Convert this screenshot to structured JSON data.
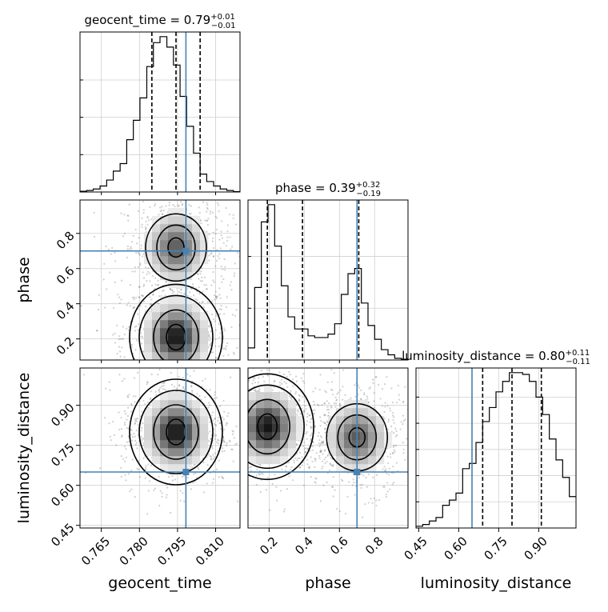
{
  "chart_data": {
    "type": "corner",
    "parameters": [
      "geocent_time",
      "phase",
      "luminosity_distance"
    ],
    "truth": {
      "geocent_time": 0.7983,
      "phase": 0.7,
      "luminosity_distance": 0.65
    },
    "truth_color": "#4682b4",
    "panel_titles": {
      "geocent_time": {
        "prefix": "geocent_time = 0.79",
        "plus": "+0.01",
        "minus": "−0.01"
      },
      "phase": {
        "prefix": "phase = 0.39",
        "plus": "+0.32",
        "minus": "−0.19"
      },
      "luminosity_distance": {
        "prefix": "luminosity_distance = 0.80",
        "plus": "+0.11",
        "minus": "−0.11"
      }
    },
    "axes": {
      "geocent_time": {
        "range": [
          0.7566,
          0.8196
        ],
        "ticks": [
          0.765,
          0.78,
          0.795,
          0.81
        ],
        "tick_labels": [
          "0.765",
          "0.780",
          "0.795",
          "0.810"
        ]
      },
      "phase": {
        "range": [
          0.08,
          0.99
        ],
        "ticks": [
          0.2,
          0.4,
          0.6,
          0.8
        ],
        "tick_labels": [
          "0.2",
          "0.4",
          "0.6",
          "0.8"
        ]
      },
      "luminosity_distance": {
        "range": [
          0.44,
          1.04
        ],
        "ticks": [
          0.45,
          0.6,
          0.75,
          0.9
        ],
        "tick_labels": [
          "0.45",
          "0.60",
          "0.75",
          "0.90"
        ]
      }
    },
    "marginals": {
      "geocent_time": {
        "bin_edges": [
          0.7566,
          0.7592,
          0.7618,
          0.7645,
          0.7671,
          0.7697,
          0.7724,
          0.775,
          0.7776,
          0.7802,
          0.7829,
          0.7855,
          0.7881,
          0.7908,
          0.7934,
          0.796,
          0.7986,
          0.8013,
          0.8039,
          0.8065,
          0.8092,
          0.8118,
          0.8144,
          0.817,
          0.8196
        ],
        "counts": [
          0.5,
          1,
          2,
          4,
          8,
          14,
          19,
          35,
          48,
          63,
          84,
          100,
          104,
          97,
          85,
          64,
          44,
          26,
          12,
          7,
          4,
          2,
          1,
          0.3
        ],
        "quantiles": [
          0.7849,
          0.7944,
          0.8039
        ],
        "yticks": [
          25,
          50,
          75
        ]
      },
      "phase": {
        "bin_edges": [
          0.08,
          0.1179,
          0.1558,
          0.1938,
          0.2317,
          0.2696,
          0.3075,
          0.3454,
          0.3833,
          0.4213,
          0.4592,
          0.4971,
          0.535,
          0.5729,
          0.6108,
          0.6488,
          0.6867,
          0.7246,
          0.7625,
          0.8004,
          0.8383,
          0.8763,
          0.9142,
          0.9521,
          0.99
        ],
        "counts": [
          7,
          42,
          80,
          90,
          66,
          43,
          25,
          18,
          18,
          14,
          13,
          13,
          15,
          21,
          38,
          50,
          53,
          33,
          20,
          12,
          6,
          3,
          1,
          0.5
        ],
        "quantiles": [
          0.19,
          0.39,
          0.71
        ],
        "yticks": [
          30,
          60
        ]
      },
      "luminosity_distance": {
        "bin_edges": [
          0.44,
          0.465,
          0.49,
          0.515,
          0.54,
          0.565,
          0.59,
          0.615,
          0.64,
          0.665,
          0.69,
          0.715,
          0.74,
          0.765,
          0.79,
          0.815,
          0.84,
          0.865,
          0.89,
          0.915,
          0.94,
          0.965,
          0.99,
          1.015,
          1.04
        ],
        "counts": [
          1,
          2,
          4,
          6,
          13,
          16,
          20,
          34,
          37,
          49,
          61,
          69,
          78,
          84,
          89,
          89,
          88,
          84,
          75,
          65,
          51,
          39,
          29,
          18
        ],
        "quantiles": [
          0.69,
          0.8,
          0.91
        ],
        "yticks": [
          15,
          30,
          45,
          60,
          75
        ]
      }
    },
    "joint_modes": [
      {
        "x": "geocent_time",
        "y": "phase",
        "peaks": [
          [
            0.7944,
            0.21,
            1.0
          ],
          [
            0.7944,
            0.72,
            0.7
          ]
        ]
      },
      {
        "x": "geocent_time",
        "y": "luminosity_distance",
        "peaks": [
          [
            0.7944,
            0.8,
            1.0
          ]
        ]
      },
      {
        "x": "phase",
        "y": "luminosity_distance",
        "peaks": [
          [
            0.19,
            0.82,
            1.0
          ],
          [
            0.7,
            0.78,
            0.7
          ]
        ]
      }
    ]
  }
}
